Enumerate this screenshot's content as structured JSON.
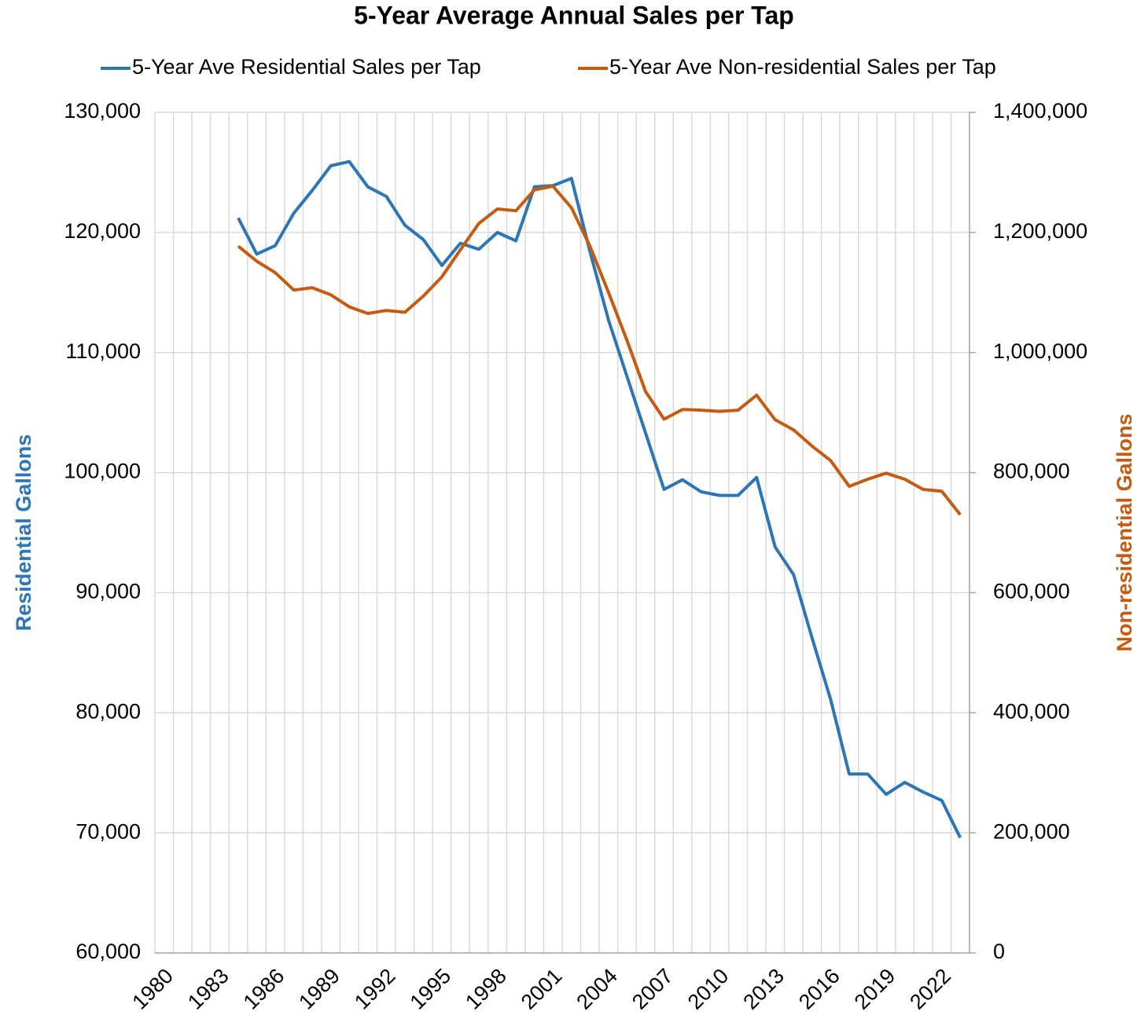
{
  "chart_data": {
    "type": "line",
    "title": "5-Year Average Annual Sales per Tap",
    "ylabel": "Residential Gallons",
    "y2label": "Non-residential Gallons",
    "categories": [
      "1980",
      null,
      null,
      "1983",
      null,
      null,
      "1986",
      null,
      null,
      "1989",
      null,
      null,
      "1992",
      null,
      null,
      "1995",
      null,
      null,
      "1998",
      null,
      null,
      "2001",
      null,
      null,
      "2004",
      null,
      null,
      "2007",
      null,
      null,
      "2010",
      null,
      null,
      "2013",
      null,
      null,
      "2016",
      null,
      null,
      "2019",
      null,
      null,
      "2022",
      null
    ],
    "series": [
      {
        "name": "5-Year Ave Residential Sales per Tap",
        "color": "#2e75b6",
        "axis": "y",
        "values": [
          null,
          null,
          null,
          null,
          121200,
          118200,
          118900,
          121600,
          123500,
          125550,
          125900,
          123800,
          123000,
          120600,
          119400,
          117250,
          119100,
          118600,
          120000,
          119300,
          123800,
          123900,
          124500,
          118400,
          112700,
          108000,
          103300,
          98600,
          99400,
          98400,
          98100,
          98100,
          99600,
          93800,
          91500,
          86200,
          81100,
          74900,
          74900,
          73200,
          74200,
          73400,
          72700,
          69600
        ]
      },
      {
        "name": "5-Year Ave Non-residential Sales per Tap",
        "color": "#c55a11",
        "axis": "y2",
        "values": [
          null,
          null,
          null,
          null,
          1177000,
          1152000,
          1133000,
          1104000,
          1108000,
          1096000,
          1076000,
          1065000,
          1070000,
          1067000,
          1094000,
          1126000,
          1171000,
          1215000,
          1239000,
          1236000,
          1271000,
          1277000,
          1241000,
          1177000,
          1100000,
          1020000,
          935000,
          889000,
          905000,
          904000,
          902000,
          904000,
          929000,
          888000,
          871000,
          844000,
          820000,
          777000,
          789000,
          799000,
          789000,
          772000,
          769000,
          730000
        ]
      }
    ],
    "ylim": [
      60000,
      130000
    ],
    "yticks": [
      {
        "value": 60000,
        "label": "60,000"
      },
      {
        "value": 70000,
        "label": "70,000"
      },
      {
        "value": 80000,
        "label": "80,000"
      },
      {
        "value": 90000,
        "label": "90,000"
      },
      {
        "value": 100000,
        "label": "100,000"
      },
      {
        "value": 110000,
        "label": "110,000"
      },
      {
        "value": 120000,
        "label": "120,000"
      },
      {
        "value": 130000,
        "label": "130,000"
      }
    ],
    "y2lim": [
      0,
      1400000
    ],
    "y2ticks": [
      0,
      {
        "value": 200000,
        "label": "200,000"
      },
      {
        "value": 400000,
        "label": "400,000"
      },
      {
        "value": 600000,
        "label": "600,000"
      },
      {
        "value": 800000,
        "label": "800,000"
      },
      {
        "value": 1000000,
        "label": "1,000,000"
      },
      {
        "value": 1200000,
        "label": "1,200,000"
      },
      {
        "value": 1400000,
        "label": "1,400,000"
      }
    ],
    "grid": true,
    "legend": "top"
  }
}
